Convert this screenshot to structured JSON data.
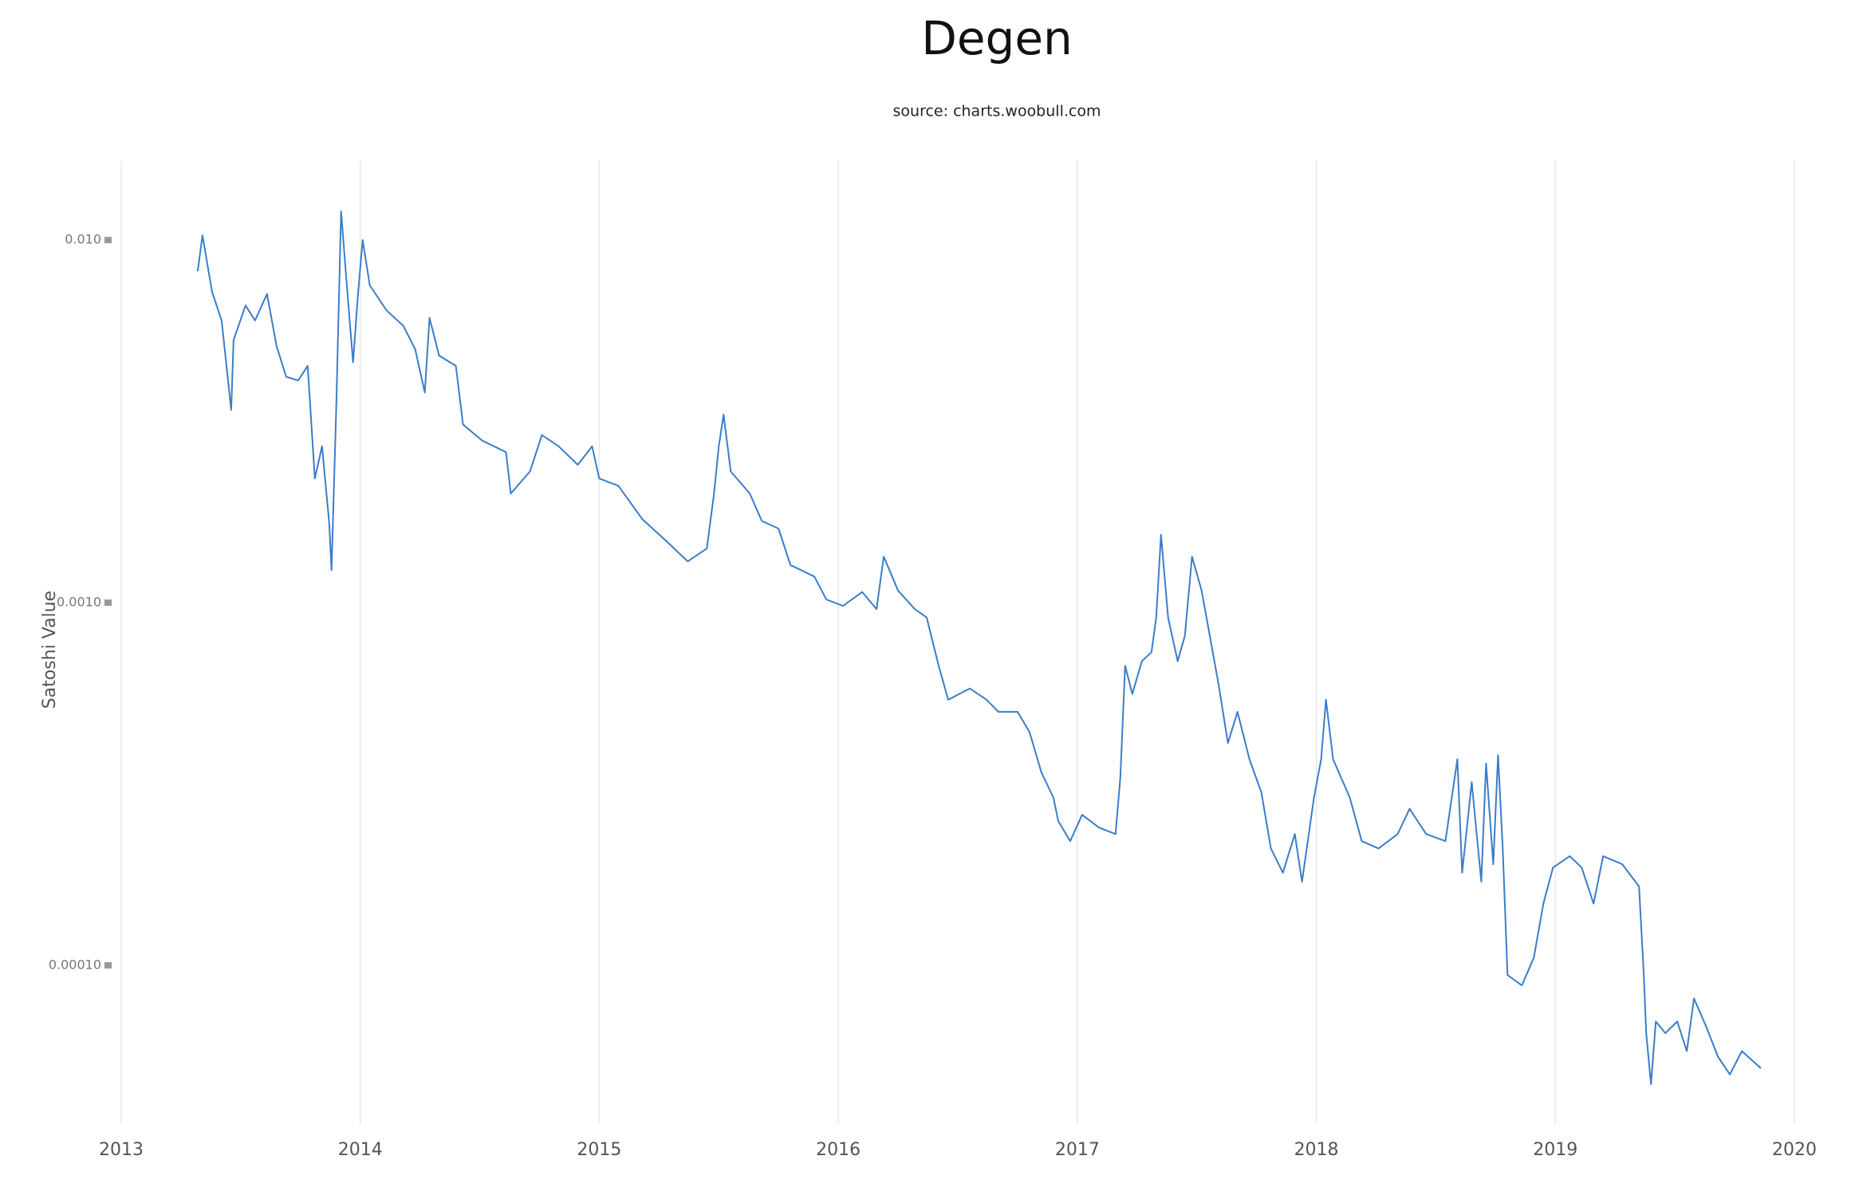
{
  "chart_data": {
    "type": "line",
    "title": "Degen",
    "subtitle": "source: charts.woobull.com",
    "y_label": "Satoshi Value",
    "log_y": true,
    "grid": true,
    "x": [
      2013.32,
      2013.34,
      2013.38,
      2013.42,
      2013.46,
      2013.47,
      2013.52,
      2013.56,
      2013.61,
      2013.65,
      2013.69,
      2013.74,
      2013.78,
      2013.81,
      2013.84,
      2013.87,
      2013.88,
      2013.9,
      2013.92,
      2013.94,
      2013.97,
      2013.99,
      2014.01,
      2014.04,
      2014.11,
      2014.18,
      2014.23,
      2014.27,
      2014.29,
      2014.33,
      2014.4,
      2014.43,
      2014.51,
      2014.61,
      2014.63,
      2014.71,
      2014.76,
      2014.83,
      2014.91,
      2014.97,
      2015.0,
      2015.08,
      2015.18,
      2015.28,
      2015.37,
      2015.45,
      2015.48,
      2015.5,
      2015.52,
      2015.55,
      2015.63,
      2015.68,
      2015.75,
      2015.8,
      2015.9,
      2015.95,
      2016.02,
      2016.1,
      2016.16,
      2016.19,
      2016.25,
      2016.32,
      2016.37,
      2016.42,
      2016.46,
      2016.55,
      2016.62,
      2016.67,
      2016.75,
      2016.8,
      2016.85,
      2016.9,
      2016.92,
      2016.97,
      2017.02,
      2017.09,
      2017.16,
      2017.18,
      2017.2,
      2017.23,
      2017.27,
      2017.31,
      2017.33,
      2017.35,
      2017.38,
      2017.42,
      2017.45,
      2017.48,
      2017.52,
      2017.55,
      2017.59,
      2017.63,
      2017.67,
      2017.72,
      2017.77,
      2017.81,
      2017.86,
      2017.91,
      2017.94,
      2017.99,
      2018.02,
      2018.04,
      2018.07,
      2018.14,
      2018.19,
      2018.26,
      2018.34,
      2018.39,
      2018.46,
      2018.54,
      2018.59,
      2018.61,
      2018.65,
      2018.69,
      2018.71,
      2018.74,
      2018.76,
      2018.78,
      2018.8,
      2018.86,
      2018.91,
      2018.95,
      2018.99,
      2019.06,
      2019.11,
      2019.16,
      2019.2,
      2019.28,
      2019.35,
      2019.37,
      2019.38,
      2019.4,
      2019.42,
      2019.46,
      2019.51,
      2019.55,
      2019.58,
      2019.63,
      2019.68,
      2019.73,
      2019.78,
      2019.86
    ],
    "series": [
      {
        "name": "Degen",
        "color": "#3a7dc9",
        "values": [
          0.0082,
          0.0103,
          0.0072,
          0.006,
          0.0034,
          0.0053,
          0.0066,
          0.006,
          0.0071,
          0.0051,
          0.0042,
          0.0041,
          0.0045,
          0.0022,
          0.0027,
          0.00166,
          0.00123,
          0.0035,
          0.012,
          0.0081,
          0.0046,
          0.007,
          0.01,
          0.0075,
          0.0064,
          0.0058,
          0.005,
          0.0038,
          0.0061,
          0.0048,
          0.0045,
          0.0031,
          0.0028,
          0.0026,
          0.002,
          0.0023,
          0.0029,
          0.0027,
          0.0024,
          0.0027,
          0.0022,
          0.0021,
          0.0017,
          0.00148,
          0.0013,
          0.00141,
          0.002,
          0.0027,
          0.0033,
          0.0023,
          0.002,
          0.00168,
          0.0016,
          0.00127,
          0.00118,
          0.00102,
          0.00098,
          0.00107,
          0.00096,
          0.00134,
          0.00108,
          0.00096,
          0.00091,
          0.00067,
          0.00054,
          0.00058,
          0.00054,
          0.0005,
          0.0005,
          0.00044,
          0.00034,
          0.00029,
          0.00025,
          0.00022,
          0.00026,
          0.00024,
          0.00023,
          0.00033,
          0.00067,
          0.00056,
          0.00069,
          0.00073,
          0.00091,
          0.00154,
          0.00091,
          0.00069,
          0.00081,
          0.00134,
          0.00108,
          0.00084,
          0.0006,
          0.00041,
          0.0005,
          0.00037,
          0.0003,
          0.00021,
          0.00018,
          0.00023,
          0.00017,
          0.00029,
          0.00037,
          0.00054,
          0.00037,
          0.00029,
          0.00022,
          0.00021,
          0.00023,
          0.00027,
          0.00023,
          0.00022,
          0.00037,
          0.00018,
          0.00032,
          0.00017,
          0.00036,
          0.00019,
          0.00038,
          0.00021,
          9.4e-05,
          8.8e-05,
          0.000105,
          0.000148,
          0.000186,
          0.0002,
          0.000186,
          0.000148,
          0.0002,
          0.00019,
          0.000165,
          9.4e-05,
          6.5e-05,
          4.7e-05,
          7e-05,
          6.5e-05,
          7e-05,
          5.8e-05,
          8.1e-05,
          6.8e-05,
          5.6e-05,
          5e-05,
          5.8e-05,
          5.2e-05
        ]
      }
    ],
    "xlim": [
      2013,
      2020
    ],
    "xticks": [
      2013,
      2014,
      2015,
      2016,
      2017,
      2018,
      2019,
      2020
    ],
    "ylim": [
      3.8e-05,
      0.0166
    ],
    "yticks": [
      {
        "value": 0.0001,
        "label": "0.00010"
      },
      {
        "value": 0.001,
        "label": "0.0010"
      },
      {
        "value": 0.01,
        "label": "0.010"
      }
    ]
  }
}
